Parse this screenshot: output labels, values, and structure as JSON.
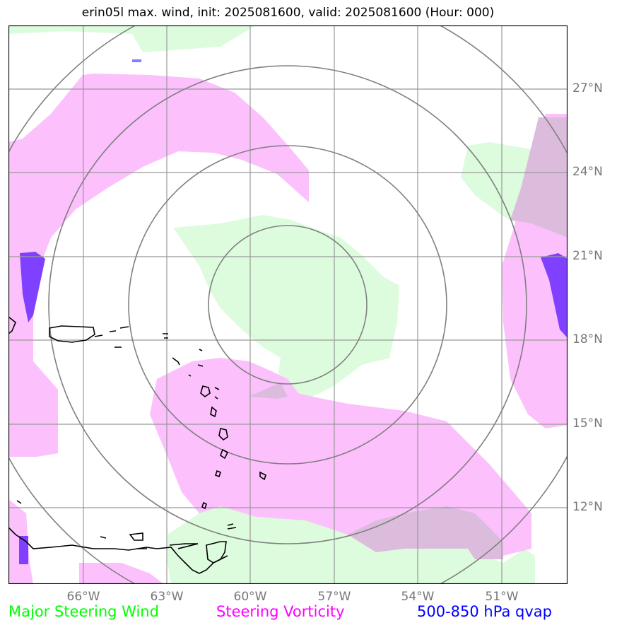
{
  "title": "erin05l max. wind, init: 2025081600, valid: 2025081600 (Hour: 000)",
  "lat_labels": [
    "27°N",
    "24°N",
    "21°N",
    "18°N",
    "15°N",
    "12°N"
  ],
  "lon_labels": [
    "66°W",
    "63°W",
    "60°W",
    "57°W",
    "54°W",
    "51°W"
  ],
  "legend": {
    "wind": "Major Steering Wind",
    "vorticity": "Steering Vorticity",
    "qvap": "500-850 hPa qvap"
  },
  "colors": {
    "wind": "#00ff00",
    "vorticity": "#ff00ff",
    "qvap": "#0000ff",
    "wind_fill": "#ddfcdd",
    "vorticity_fill": "#fcc0fc",
    "overlap_fill": "#dcbcdc",
    "qvap_fill": "#7f40ff"
  }
}
